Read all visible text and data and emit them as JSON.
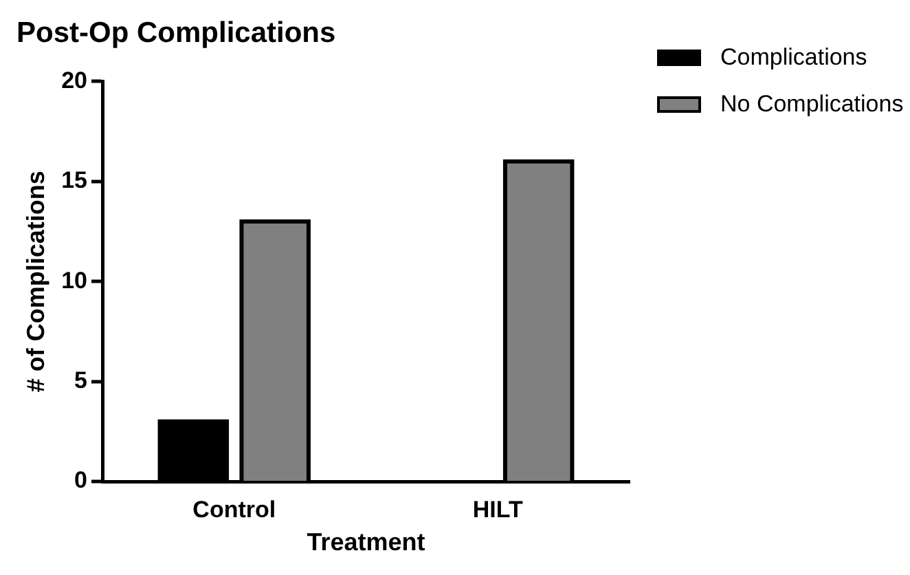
{
  "chart_data": {
    "type": "bar",
    "title": "Post-Op Complications",
    "xlabel": "Treatment",
    "ylabel": "# of Complications",
    "categories": [
      "Control",
      "HILT"
    ],
    "series": [
      {
        "name": "Complications",
        "color": "#000000",
        "values": [
          3,
          0
        ]
      },
      {
        "name": "No Complications",
        "color": "#808080",
        "values": [
          13,
          16
        ]
      }
    ],
    "ylim": [
      0,
      20
    ],
    "yticks": [
      0,
      5,
      10,
      15,
      20
    ],
    "grid": false,
    "legend": "top right"
  }
}
